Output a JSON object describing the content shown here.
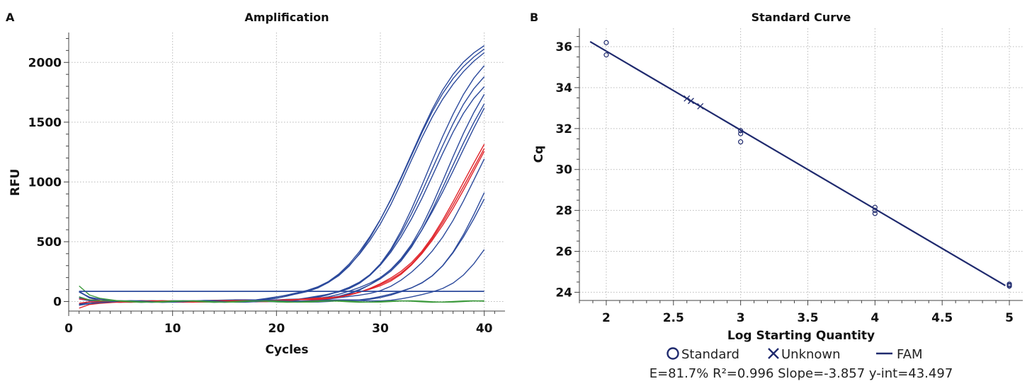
{
  "panels": {
    "a": {
      "letter": "A"
    },
    "b": {
      "letter": "B"
    }
  },
  "chart_data": [
    {
      "type": "line",
      "title": "Amplification",
      "xlabel": "Cycles",
      "ylabel": "RFU",
      "xlim": [
        0,
        42
      ],
      "ylim": [
        -80,
        2250
      ],
      "xticks": [
        0,
        10,
        20,
        30,
        40
      ],
      "yticks": [
        0,
        500,
        1000,
        1500,
        2000
      ],
      "grid": true,
      "threshold": 85,
      "colors": {
        "standard": "#2c4a9c",
        "sample": "#e0242a",
        "ntc": "#3c9a3c"
      },
      "curves": [
        {
          "group": "standard",
          "cq": 29.6,
          "plateau": 2320,
          "k": 0.34
        },
        {
          "group": "standard",
          "cq": 29.6,
          "plateau": 2300,
          "k": 0.33
        },
        {
          "group": "standard",
          "cq": 29.75,
          "plateau": 2270,
          "k": 0.33
        },
        {
          "group": "standard",
          "cq": 31.7,
          "plateau": 2230,
          "k": 0.38
        },
        {
          "group": "standard",
          "cq": 31.8,
          "plateau": 2150,
          "k": 0.37
        },
        {
          "group": "standard",
          "cq": 31.95,
          "plateau": 2090,
          "k": 0.36
        },
        {
          "group": "standard",
          "cq": 33.6,
          "plateau": 2250,
          "k": 0.36
        },
        {
          "group": "standard",
          "cq": 33.8,
          "plateau": 2200,
          "k": 0.35
        },
        {
          "group": "standard",
          "cq": 34.3,
          "plateau": 2300,
          "k": 0.32
        },
        {
          "group": "standard",
          "cq": 36.2,
          "plateau": 2100,
          "k": 0.33
        },
        {
          "group": "standard",
          "cq": 37.5,
          "plateau": 2000,
          "k": 0.38
        },
        {
          "group": "standard",
          "cq": 37.8,
          "plateau": 2000,
          "k": 0.36
        },
        {
          "group": "sample",
          "cq": 35.5,
          "plateau": 2150,
          "k": 0.31
        },
        {
          "group": "sample",
          "cq": 35.6,
          "plateau": 2120,
          "k": 0.31
        },
        {
          "group": "sample",
          "cq": 35.7,
          "plateau": 2100,
          "k": 0.31
        },
        {
          "group": "standard",
          "cq": 39.5,
          "plateau": 1600,
          "k": 0.4
        },
        {
          "group": "ntc",
          "cq": 70,
          "plateau": 0,
          "k": 0.3
        },
        {
          "group": "ntc",
          "cq": 70,
          "plateau": 0,
          "k": 0.3
        }
      ]
    },
    {
      "type": "scatter",
      "title": "Standard Curve",
      "xlabel": "Log Starting Quantity",
      "ylabel": "Cq",
      "xlim": [
        1.8,
        5.1
      ],
      "ylim": [
        23.6,
        36.9
      ],
      "xticks": [
        2,
        2.5,
        3,
        3.5,
        4,
        4.5,
        5
      ],
      "xtick_labels": [
        "2",
        "2.5",
        "3",
        "3.5",
        "4",
        "4.5",
        "5"
      ],
      "yticks": [
        24,
        26,
        28,
        30,
        32,
        34,
        36
      ],
      "grid": true,
      "series": [
        {
          "name": "Standard",
          "marker": "circle",
          "points": [
            [
              2,
              36.2
            ],
            [
              2,
              35.6
            ],
            [
              3,
              31.9
            ],
            [
              3,
              31.75
            ],
            [
              3,
              31.35
            ],
            [
              4,
              28.15
            ],
            [
              4,
              28.0
            ],
            [
              4,
              27.85
            ],
            [
              5,
              24.4
            ],
            [
              5,
              24.35
            ],
            [
              5,
              24.3
            ]
          ]
        },
        {
          "name": "Unknown",
          "marker": "x",
          "points": [
            [
              2.6,
              33.47
            ],
            [
              2.63,
              33.35
            ],
            [
              2.7,
              33.09
            ]
          ]
        },
        {
          "name": "FAM",
          "marker": "line",
          "fit": {
            "slope": -3.857,
            "intercept": 43.497,
            "x_range": [
              1.88,
              4.97
            ]
          }
        }
      ],
      "legend": {
        "placement": "bottom-center",
        "items": [
          "Standard",
          "Unknown",
          "FAM"
        ]
      },
      "stats_text": "E=81.7% R²=0.996 Slope=-3.857 y-int=43.497",
      "color": "#1f2a6e"
    }
  ]
}
